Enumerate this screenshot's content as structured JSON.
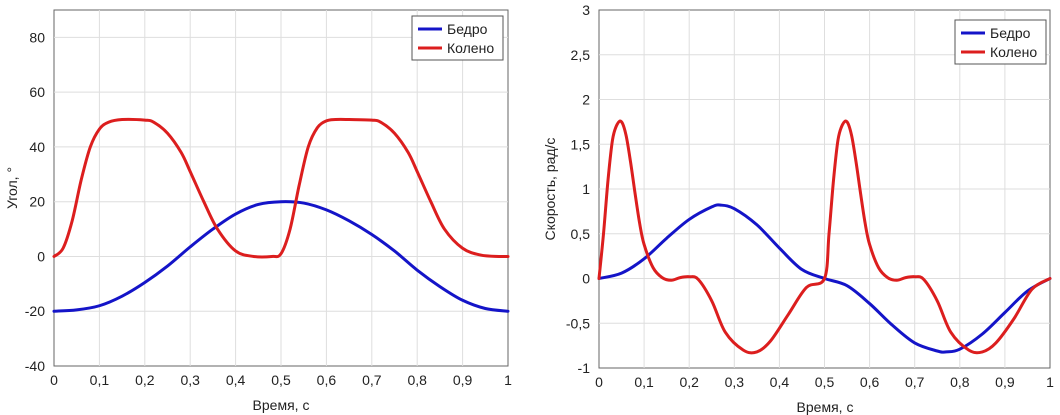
{
  "colors": {
    "blue": "#1414c8",
    "red": "#dc1e1e",
    "grid": "#dedede",
    "axis": "#666666"
  },
  "chart_data": [
    {
      "type": "line",
      "xlabel": "Время, с",
      "ylabel": "Угол, °",
      "xlim": [
        0,
        1
      ],
      "ylim": [
        -40,
        90
      ],
      "grid": true,
      "legend": "top-right",
      "x_ticks": [
        0,
        0.1,
        0.2,
        0.3,
        0.4,
        0.5,
        0.6,
        0.7,
        0.8,
        0.9,
        1
      ],
      "x_tick_labels": [
        "0",
        "0,1",
        "0,2",
        "0,3",
        "0,4",
        "0,5",
        "0,6",
        "0,7",
        "0,8",
        "0,9",
        "1"
      ],
      "y_ticks": [
        -40,
        -20,
        0,
        20,
        40,
        60,
        80
      ],
      "y_tick_labels": [
        "-40",
        "-20",
        "0",
        "20",
        "40",
        "60",
        "80"
      ],
      "series": [
        {
          "name": "Бедро",
          "color": "#1414c8",
          "x": [
            0,
            0.05,
            0.1,
            0.15,
            0.2,
            0.25,
            0.3,
            0.35,
            0.4,
            0.45,
            0.5,
            0.55,
            0.6,
            0.65,
            0.7,
            0.75,
            0.8,
            0.85,
            0.9,
            0.95,
            1.0
          ],
          "y": [
            -20,
            -19.5,
            -18,
            -14.5,
            -9.5,
            -3.5,
            3.5,
            10,
            15.5,
            19,
            20,
            19.5,
            17,
            13,
            8,
            2,
            -5,
            -11,
            -16,
            -19,
            -20
          ]
        },
        {
          "name": "Колено",
          "color": "#dc1e1e",
          "x": [
            0,
            0.02,
            0.04,
            0.06,
            0.08,
            0.1,
            0.12,
            0.15,
            0.2,
            0.22,
            0.25,
            0.28,
            0.3,
            0.33,
            0.36,
            0.4,
            0.44,
            0.48,
            0.5,
            0.52,
            0.54,
            0.56,
            0.58,
            0.6,
            0.62,
            0.65,
            0.7,
            0.72,
            0.75,
            0.78,
            0.8,
            0.83,
            0.86,
            0.9,
            0.94,
            0.98,
            1.0
          ],
          "y": [
            0,
            3,
            13,
            28,
            40,
            46.5,
            49,
            50,
            49.8,
            49,
            45,
            38,
            31,
            20,
            10,
            2,
            0,
            0,
            1,
            10,
            26,
            40,
            47,
            49.5,
            50,
            50,
            49.8,
            49,
            45,
            38,
            31,
            20,
            10,
            3,
            0.5,
            0,
            0
          ]
        }
      ]
    },
    {
      "type": "line",
      "xlabel": "Время, с",
      "ylabel": "Скорость, рад/с",
      "xlim": [
        0,
        1
      ],
      "ylim": [
        -1,
        3
      ],
      "grid": true,
      "legend": "top-right",
      "x_ticks": [
        0,
        0.1,
        0.2,
        0.3,
        0.4,
        0.5,
        0.6,
        0.7,
        0.8,
        0.9,
        1
      ],
      "x_tick_labels": [
        "0",
        "0,1",
        "0,2",
        "0,3",
        "0,4",
        "0,5",
        "0,6",
        "0,7",
        "0,8",
        "0,9",
        "1"
      ],
      "y_ticks": [
        -1,
        -0.5,
        0,
        0.5,
        1,
        1.5,
        2,
        2.5,
        3
      ],
      "y_tick_labels": [
        "-1",
        "-0,5",
        "0",
        "0,5",
        "1",
        "1,5",
        "2",
        "2,5",
        "3"
      ],
      "series": [
        {
          "name": "Бедро",
          "color": "#1414c8",
          "x": [
            0,
            0.05,
            0.1,
            0.15,
            0.2,
            0.25,
            0.27,
            0.3,
            0.35,
            0.4,
            0.45,
            0.5,
            0.55,
            0.6,
            0.65,
            0.7,
            0.75,
            0.77,
            0.8,
            0.85,
            0.9,
            0.95,
            1.0
          ],
          "y": [
            0,
            0.06,
            0.22,
            0.45,
            0.66,
            0.8,
            0.82,
            0.78,
            0.6,
            0.34,
            0.1,
            0,
            -0.08,
            -0.28,
            -0.52,
            -0.72,
            -0.81,
            -0.82,
            -0.79,
            -0.62,
            -0.38,
            -0.14,
            0
          ]
        },
        {
          "name": "Колено",
          "color": "#dc1e1e",
          "x": [
            0,
            0.01,
            0.02,
            0.03,
            0.04,
            0.05,
            0.06,
            0.07,
            0.08,
            0.09,
            0.1,
            0.12,
            0.14,
            0.16,
            0.18,
            0.2,
            0.22,
            0.25,
            0.28,
            0.32,
            0.35,
            0.38,
            0.42,
            0.46,
            0.5,
            0.51,
            0.52,
            0.53,
            0.54,
            0.55,
            0.56,
            0.57,
            0.58,
            0.59,
            0.6,
            0.62,
            0.64,
            0.66,
            0.68,
            0.7,
            0.72,
            0.75,
            0.78,
            0.82,
            0.85,
            0.88,
            0.92,
            0.96,
            1.0
          ],
          "y": [
            0,
            0.5,
            1.1,
            1.55,
            1.72,
            1.75,
            1.6,
            1.3,
            0.95,
            0.62,
            0.38,
            0.12,
            0.01,
            -0.02,
            0.01,
            0.02,
            -0.01,
            -0.25,
            -0.6,
            -0.8,
            -0.82,
            -0.7,
            -0.4,
            -0.1,
            0,
            0.5,
            1.1,
            1.55,
            1.72,
            1.75,
            1.6,
            1.3,
            0.95,
            0.62,
            0.38,
            0.12,
            0.01,
            -0.02,
            0.01,
            0.02,
            -0.01,
            -0.25,
            -0.6,
            -0.8,
            -0.82,
            -0.72,
            -0.45,
            -0.12,
            0
          ]
        }
      ]
    }
  ]
}
